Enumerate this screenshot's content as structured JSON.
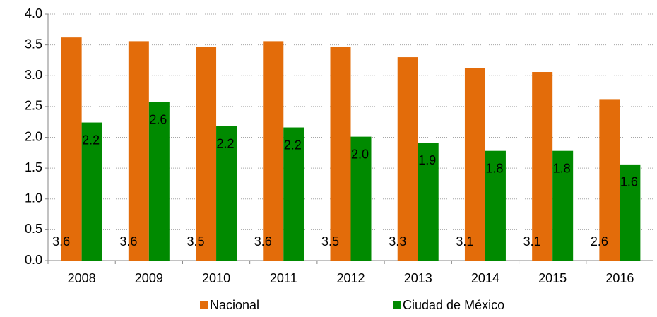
{
  "chart_data": {
    "type": "bar",
    "categories": [
      "2008",
      "2009",
      "2010",
      "2011",
      "2012",
      "2013",
      "2014",
      "2015",
      "2016"
    ],
    "series": [
      {
        "name": "Nacional",
        "color": "#e36c0a",
        "values": [
          3.62,
          3.56,
          3.47,
          3.56,
          3.47,
          3.3,
          3.12,
          3.06,
          2.62
        ],
        "value_labels": [
          "3.6",
          "3.6",
          "3.5",
          "3.6",
          "3.5",
          "3.3",
          "3.1",
          "3.1",
          "2.6"
        ]
      },
      {
        "name": "Ciudad de México",
        "color": "#008a00",
        "values": [
          2.24,
          2.57,
          2.18,
          2.16,
          2.01,
          1.91,
          1.78,
          1.78,
          1.56
        ],
        "value_labels": [
          "2.2",
          "2.6",
          "2.2",
          "2.2",
          "2.0",
          "1.9",
          "1.8",
          "1.8",
          "1.6"
        ]
      }
    ],
    "ylim": [
      0,
      4
    ],
    "yticks": [
      {
        "value": 0,
        "label": "0.0"
      },
      0.5,
      {
        "value": 1,
        "label": "1.0"
      },
      1.5,
      {
        "value": 2,
        "label": "2.0"
      },
      2.5,
      {
        "value": 3,
        "label": "3.0"
      },
      3.5,
      {
        "value": 4,
        "label": "4.0"
      }
    ],
    "grid": true,
    "legend": "bottom"
  }
}
